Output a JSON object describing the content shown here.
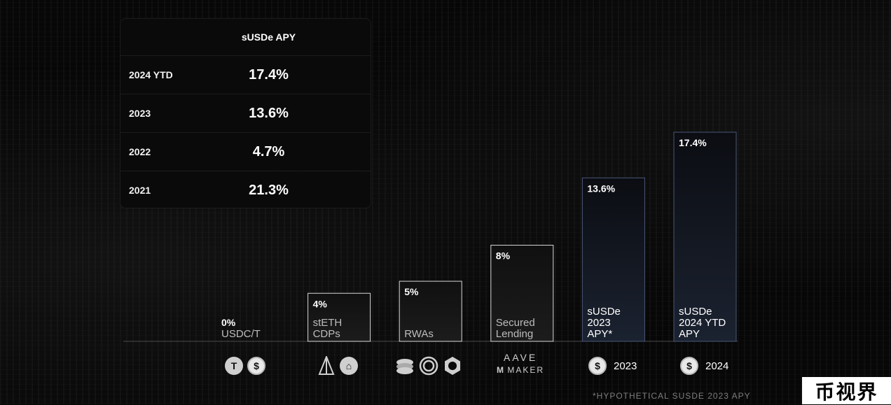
{
  "table": {
    "header_label": "sUSDe APY",
    "rows": [
      {
        "year": "2024 YTD",
        "apy": "17.4%"
      },
      {
        "year": "2023",
        "apy": "13.6%"
      },
      {
        "year": "2022",
        "apy": "4.7%"
      },
      {
        "year": "2021",
        "apy": "21.3%"
      }
    ]
  },
  "chart_data": {
    "type": "bar",
    "categories": [
      "USDC/T",
      "stETH CDPs",
      "RWAs",
      "Secured Lending",
      "sUSDe 2023 APY*",
      "sUSDe 2024 YTD APY"
    ],
    "category_lines": [
      [
        "USDC/T"
      ],
      [
        "stETH",
        "CDPs"
      ],
      [
        "RWAs"
      ],
      [
        "Secured",
        "Lending"
      ],
      [
        "sUSDe",
        "2023",
        "APY*"
      ],
      [
        "sUSDe",
        "2024 YTD",
        "APY"
      ]
    ],
    "values": [
      0,
      4,
      5,
      8,
      13.6,
      17.4
    ],
    "value_labels": [
      "0%",
      "4%",
      "5%",
      "8%",
      "13.6%",
      "17.4%"
    ],
    "highlighted": [
      false,
      false,
      false,
      false,
      true,
      true
    ],
    "ylim": [
      0,
      17.4
    ],
    "legend": "none",
    "grid": false,
    "colors": {
      "bar_fill": "#141414",
      "bar_border": "#d8d8d8",
      "highlight_fill": "#12161f",
      "highlight_border": "#4a5878"
    }
  },
  "icons": [
    {
      "group": "usdc-t",
      "items": [
        "tether-icon",
        "usdc-icon"
      ]
    },
    {
      "group": "steth",
      "items": [
        "lido-icon",
        "eth-coin-icon"
      ]
    },
    {
      "group": "rwa",
      "items": [
        "stack-coins-icon",
        "ondo-icon",
        "gear-coin-icon"
      ]
    },
    {
      "group": "lending",
      "aave_text": "AAVE",
      "maker_text": "MAKER"
    },
    {
      "group": "susde-2023",
      "label": "2023"
    },
    {
      "group": "susde-2024",
      "label": "2024"
    }
  ],
  "footnote": "*HYPOTHETICAL SUSDE 2023 APY",
  "watermark": "币视界"
}
